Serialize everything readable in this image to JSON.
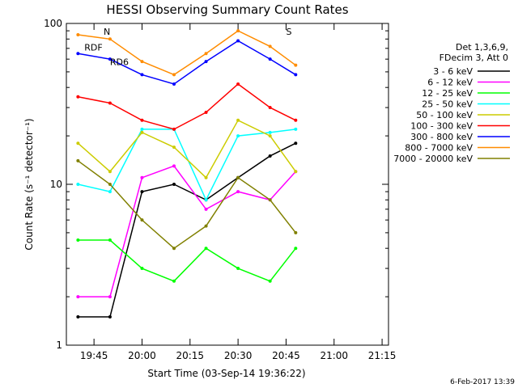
{
  "chart_data": {
    "type": "line",
    "title": "HESSI Observing Summary Count Rates",
    "xlabel": "Start Time (03-Sep-14 19:36:22)",
    "ylabel": "Count Rate (s⁻¹ detector⁻¹)",
    "yscale": "log",
    "ylim": [
      1,
      100
    ],
    "xlim": [
      "19:36:22",
      "21:17:00"
    ],
    "x_ticks": [
      "19:45",
      "20:00",
      "20:15",
      "20:30",
      "20:45",
      "21:00",
      "21:15"
    ],
    "y_ticks": [
      "1",
      "10",
      "100"
    ],
    "legend_header": [
      "Det 1,3,6,9,",
      "FDecim 3, Att 0"
    ],
    "legend_position": "right",
    "timestamp": "6-Feb-2017 13:39",
    "annotations": [
      "N",
      "RDF",
      "RD6",
      "S"
    ],
    "series": [
      {
        "name": "3 - 6 keV",
        "color": "#000000",
        "x": [
          "19:40",
          "19:50",
          "20:00",
          "20:10",
          "20:20",
          "20:30",
          "20:40",
          "20:48"
        ],
        "values": [
          1.5,
          1.5,
          9.0,
          10.0,
          8.0,
          11.0,
          15.0,
          18.0
        ]
      },
      {
        "name": "6 - 12 keV",
        "color": "#ff00ff",
        "x": [
          "19:40",
          "19:50",
          "20:00",
          "20:10",
          "20:20",
          "20:30",
          "20:40",
          "20:48"
        ],
        "values": [
          2.0,
          2.0,
          11.0,
          13.0,
          7.0,
          9.0,
          8.0,
          12.0
        ]
      },
      {
        "name": "12 - 25 keV",
        "color": "#00ff00",
        "x": [
          "19:40",
          "19:50",
          "20:00",
          "20:10",
          "20:20",
          "20:30",
          "20:40",
          "20:48"
        ],
        "values": [
          4.5,
          4.5,
          3.0,
          2.5,
          4.0,
          3.0,
          2.5,
          4.0
        ]
      },
      {
        "name": "25 - 50 keV",
        "color": "#00ffff",
        "x": [
          "19:40",
          "19:50",
          "20:00",
          "20:10",
          "20:20",
          "20:30",
          "20:40",
          "20:48"
        ],
        "values": [
          10.0,
          9.0,
          22.0,
          22.0,
          8.0,
          20.0,
          21.0,
          22.0
        ]
      },
      {
        "name": "50 - 100 keV",
        "color": "#cccc00",
        "x": [
          "19:40",
          "19:50",
          "20:00",
          "20:10",
          "20:20",
          "20:30",
          "20:40",
          "20:48"
        ],
        "values": [
          18.0,
          12.0,
          21.0,
          17.0,
          11.0,
          25.0,
          20.0,
          12.0
        ]
      },
      {
        "name": "100 - 300 keV",
        "color": "#ff0000",
        "x": [
          "19:40",
          "19:50",
          "20:00",
          "20:10",
          "20:20",
          "20:30",
          "20:40",
          "20:48"
        ],
        "values": [
          35.0,
          32.0,
          25.0,
          22.0,
          28.0,
          42.0,
          30.0,
          25.0
        ]
      },
      {
        "name": "300 - 800 keV",
        "color": "#0000ff",
        "x": [
          "19:40",
          "19:50",
          "20:00",
          "20:10",
          "20:20",
          "20:30",
          "20:40",
          "20:48"
        ],
        "values": [
          65.0,
          60.0,
          48.0,
          42.0,
          58.0,
          78.0,
          60.0,
          48.0
        ]
      },
      {
        "name": "800 - 7000 keV",
        "color": "#ff8c00",
        "x": [
          "19:40",
          "19:50",
          "20:00",
          "20:10",
          "20:20",
          "20:30",
          "20:40",
          "20:48"
        ],
        "values": [
          85.0,
          80.0,
          58.0,
          48.0,
          65.0,
          90.0,
          72.0,
          55.0
        ]
      },
      {
        "name": "7000 - 20000 keV",
        "color": "#808000",
        "x": [
          "19:40",
          "19:50",
          "20:00",
          "20:10",
          "20:20",
          "20:30",
          "20:40",
          "20:48"
        ],
        "values": [
          14.0,
          10.0,
          6.0,
          4.0,
          5.5,
          11.0,
          8.0,
          5.0
        ]
      }
    ]
  }
}
